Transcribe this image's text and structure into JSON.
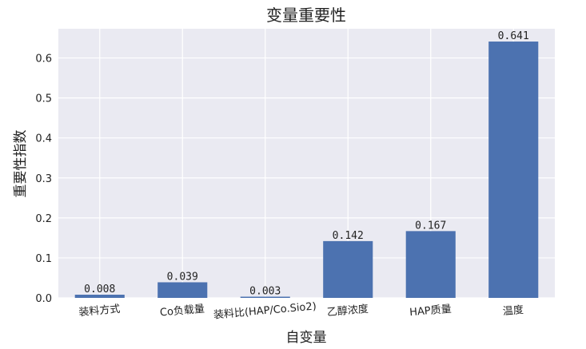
{
  "chart_data": {
    "type": "bar",
    "title": "变量重要性",
    "xlabel": "自变量",
    "ylabel": "重要性指数",
    "categories": [
      "装料方式",
      "Co负载量",
      "装料比(HAP/Co.Sio2)",
      "乙醇浓度",
      "HAP质量",
      "温度"
    ],
    "values": [
      0.008,
      0.039,
      0.003,
      0.142,
      0.167,
      0.641
    ],
    "value_labels": [
      "0.008",
      "0.039",
      "0.003",
      "0.142",
      "0.167",
      "0.641"
    ],
    "yticks": [
      "0.0",
      "0.1",
      "0.2",
      "0.3",
      "0.4",
      "0.5",
      "0.6"
    ],
    "ylim": [
      0,
      0.673
    ],
    "grid": true,
    "colors": {
      "bar": "#4c72b0",
      "plot_bg": "#eaeaf2",
      "grid": "#ffffff"
    }
  }
}
